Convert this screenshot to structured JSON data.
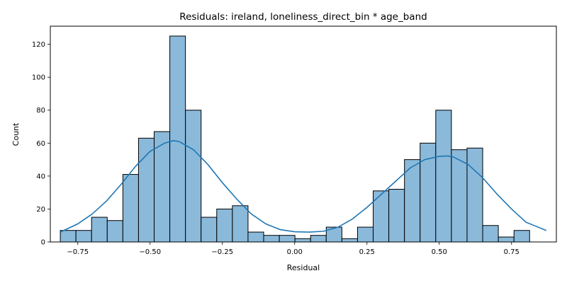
{
  "chart_data": {
    "type": "bar",
    "subtype": "histogram-with-kde",
    "title": "Residuals: ireland, loneliness_direct_bin * age_band",
    "xlabel": "Residual",
    "ylabel": "Count",
    "xlim": [
      -0.845,
      0.905
    ],
    "ylim": [
      0,
      131
    ],
    "x_ticks": [
      -0.75,
      -0.5,
      -0.25,
      0.0,
      0.25,
      0.5,
      0.75
    ],
    "x_tick_labels": [
      "−0.75",
      "−0.50",
      "−0.25",
      "0.00",
      "0.25",
      "0.50",
      "0.75"
    ],
    "y_ticks": [
      0,
      20,
      40,
      60,
      80,
      100,
      120
    ],
    "y_tick_labels": [
      "0",
      "20",
      "40",
      "60",
      "80",
      "100",
      "120"
    ],
    "grid": false,
    "legend": "none",
    "bin_width": 0.0541,
    "bins": [
      {
        "start": -0.8105,
        "count": 7
      },
      {
        "start": -0.7564,
        "count": 7
      },
      {
        "start": -0.7023,
        "count": 15
      },
      {
        "start": -0.6482,
        "count": 13
      },
      {
        "start": -0.5941,
        "count": 41
      },
      {
        "start": -0.54,
        "count": 63
      },
      {
        "start": -0.4859,
        "count": 67
      },
      {
        "start": -0.4318,
        "count": 125
      },
      {
        "start": -0.3777,
        "count": 80
      },
      {
        "start": -0.3236,
        "count": 15
      },
      {
        "start": -0.2695,
        "count": 20
      },
      {
        "start": -0.2154,
        "count": 22
      },
      {
        "start": -0.1613,
        "count": 6
      },
      {
        "start": -0.1072,
        "count": 4
      },
      {
        "start": -0.0531,
        "count": 4
      },
      {
        "start": 0.001,
        "count": 2
      },
      {
        "start": 0.0551,
        "count": 4
      },
      {
        "start": 0.1092,
        "count": 9
      },
      {
        "start": 0.1633,
        "count": 2
      },
      {
        "start": 0.2174,
        "count": 9
      },
      {
        "start": 0.2715,
        "count": 31
      },
      {
        "start": 0.3256,
        "count": 32
      },
      {
        "start": 0.3797,
        "count": 50
      },
      {
        "start": 0.4338,
        "count": 60
      },
      {
        "start": 0.4879,
        "count": 80
      },
      {
        "start": 0.542,
        "count": 56
      },
      {
        "start": 0.5961,
        "count": 57
      },
      {
        "start": 0.6502,
        "count": 10
      },
      {
        "start": 0.7043,
        "count": 3
      },
      {
        "start": 0.7584,
        "count": 7
      }
    ],
    "kde": {
      "x": [
        -0.81,
        -0.75,
        -0.7,
        -0.65,
        -0.6,
        -0.55,
        -0.5,
        -0.45,
        -0.42,
        -0.4,
        -0.35,
        -0.3,
        -0.25,
        -0.2,
        -0.15,
        -0.1,
        -0.05,
        0.0,
        0.05,
        0.1,
        0.15,
        0.2,
        0.25,
        0.3,
        0.35,
        0.4,
        0.45,
        0.5,
        0.53,
        0.55,
        0.6,
        0.65,
        0.7,
        0.75,
        0.8,
        0.87
      ],
      "y": [
        6,
        11,
        17,
        25,
        35,
        46,
        55,
        60,
        61.5,
        61,
        56,
        47,
        36,
        26,
        17,
        11,
        7.5,
        6.2,
        6,
        6.5,
        9,
        14,
        21,
        29,
        37,
        45,
        50,
        52,
        52.2,
        51.5,
        47,
        39,
        29,
        20,
        12,
        7
      ]
    },
    "colors": {
      "bar_fill": "#8ab9da",
      "bar_edge": "#000000",
      "kde_line": "#1f77b4"
    }
  }
}
